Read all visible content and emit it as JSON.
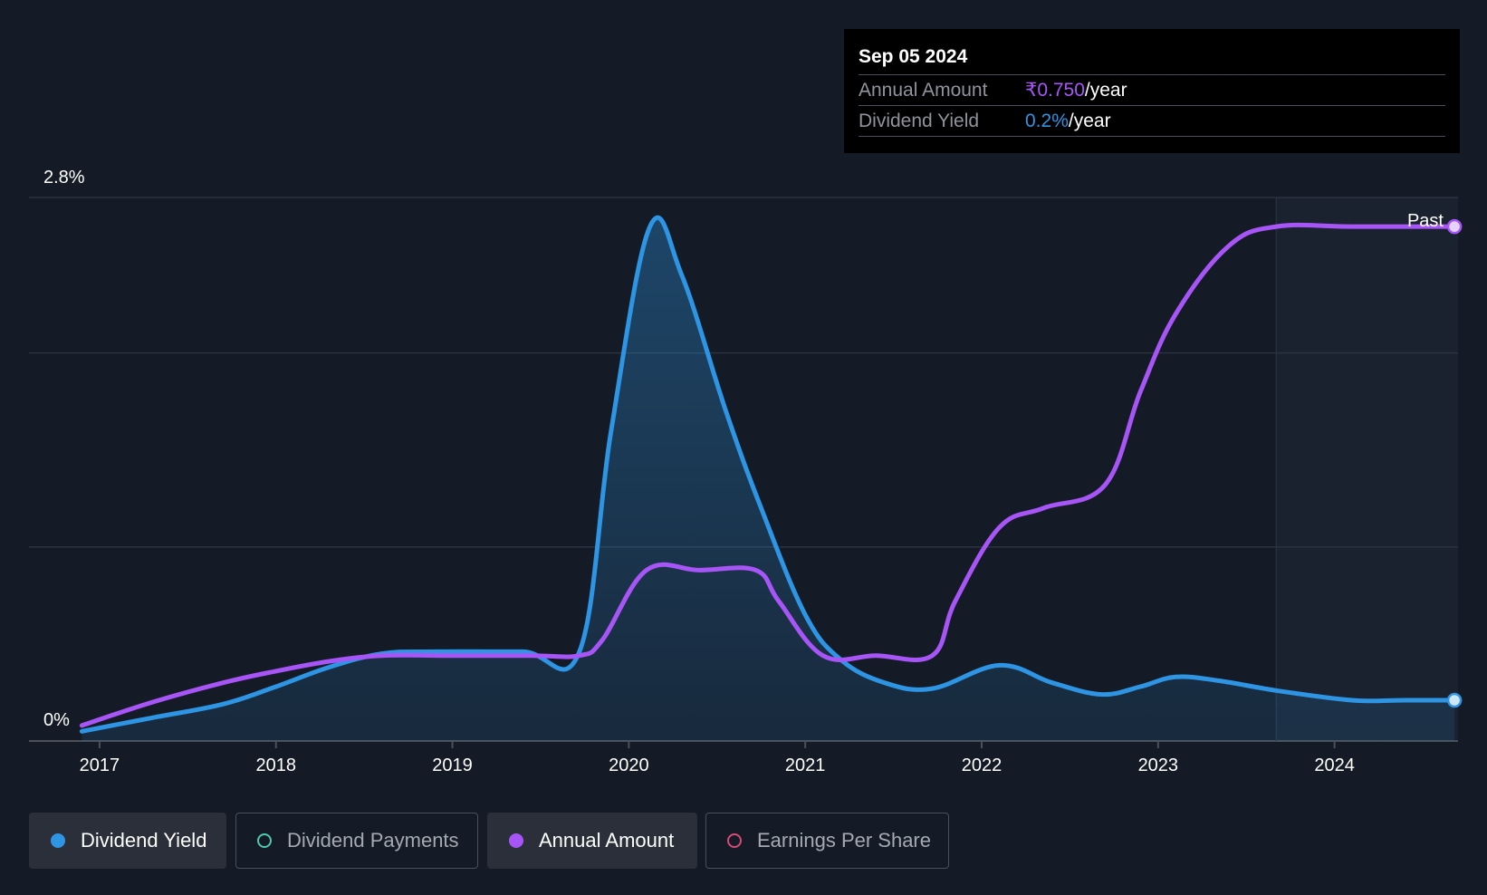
{
  "tooltip": {
    "date": "Sep 05 2024",
    "rows": [
      {
        "label": "Annual Amount",
        "value": "₹0.750",
        "unit": "/year",
        "color": "#a855f7"
      },
      {
        "label": "Dividend Yield",
        "value": "0.2%",
        "unit": "/year",
        "color": "#2d95e3"
      }
    ]
  },
  "legend": [
    {
      "label": "Dividend Yield",
      "color": "#2d95e3",
      "active": true
    },
    {
      "label": "Dividend Payments",
      "color": "#4ec9b0",
      "active": false
    },
    {
      "label": "Annual Amount",
      "color": "#a855f7",
      "active": true
    },
    {
      "label": "Earnings Per Share",
      "color": "#d9487a",
      "active": false
    }
  ],
  "chart_data": {
    "type": "line",
    "y_tick_labels": [
      "2.8%",
      "0%"
    ],
    "x_tick_labels": [
      "2017",
      "2018",
      "2019",
      "2020",
      "2021",
      "2022",
      "2023",
      "2024"
    ],
    "ylim": [
      0,
      2.8
    ],
    "xlim": [
      2016.6,
      2024.7
    ],
    "past_label": "Past",
    "past_start": 2023.67,
    "grid": true,
    "series": [
      {
        "name": "Dividend Yield",
        "color": "#2d95e3",
        "x": [
          2016.9,
          2017.3,
          2017.7,
          2018.0,
          2018.3,
          2018.6,
          2018.9,
          2019.4,
          2019.72,
          2019.9,
          2020.12,
          2020.3,
          2020.55,
          2020.75,
          2021.0,
          2021.2,
          2021.45,
          2021.72,
          2022.1,
          2022.4,
          2022.68,
          2022.9,
          2023.1,
          2023.35,
          2023.67,
          2024.1,
          2024.4,
          2024.68
        ],
        "y": [
          0.05,
          0.12,
          0.19,
          0.28,
          0.38,
          0.45,
          0.46,
          0.46,
          0.46,
          1.6,
          2.65,
          2.4,
          1.7,
          1.2,
          0.65,
          0.42,
          0.3,
          0.27,
          0.39,
          0.3,
          0.24,
          0.28,
          0.33,
          0.31,
          0.26,
          0.21,
          0.21,
          0.21
        ]
      },
      {
        "name": "Annual Amount",
        "color": "#a855f7",
        "x": [
          2016.9,
          2017.3,
          2017.7,
          2018.0,
          2018.3,
          2018.6,
          2019.0,
          2019.45,
          2019.72,
          2019.85,
          2020.1,
          2020.4,
          2020.72,
          2020.85,
          2021.1,
          2021.4,
          2021.72,
          2021.85,
          2022.1,
          2022.35,
          2022.7,
          2022.9,
          2023.1,
          2023.4,
          2023.67,
          2024.1,
          2024.68
        ],
        "y": [
          0.08,
          0.2,
          0.3,
          0.36,
          0.41,
          0.44,
          0.44,
          0.44,
          0.44,
          0.52,
          0.88,
          0.88,
          0.88,
          0.72,
          0.44,
          0.44,
          0.44,
          0.72,
          1.1,
          1.2,
          1.32,
          1.8,
          2.2,
          2.55,
          2.65,
          2.65,
          2.65
        ]
      }
    ]
  }
}
